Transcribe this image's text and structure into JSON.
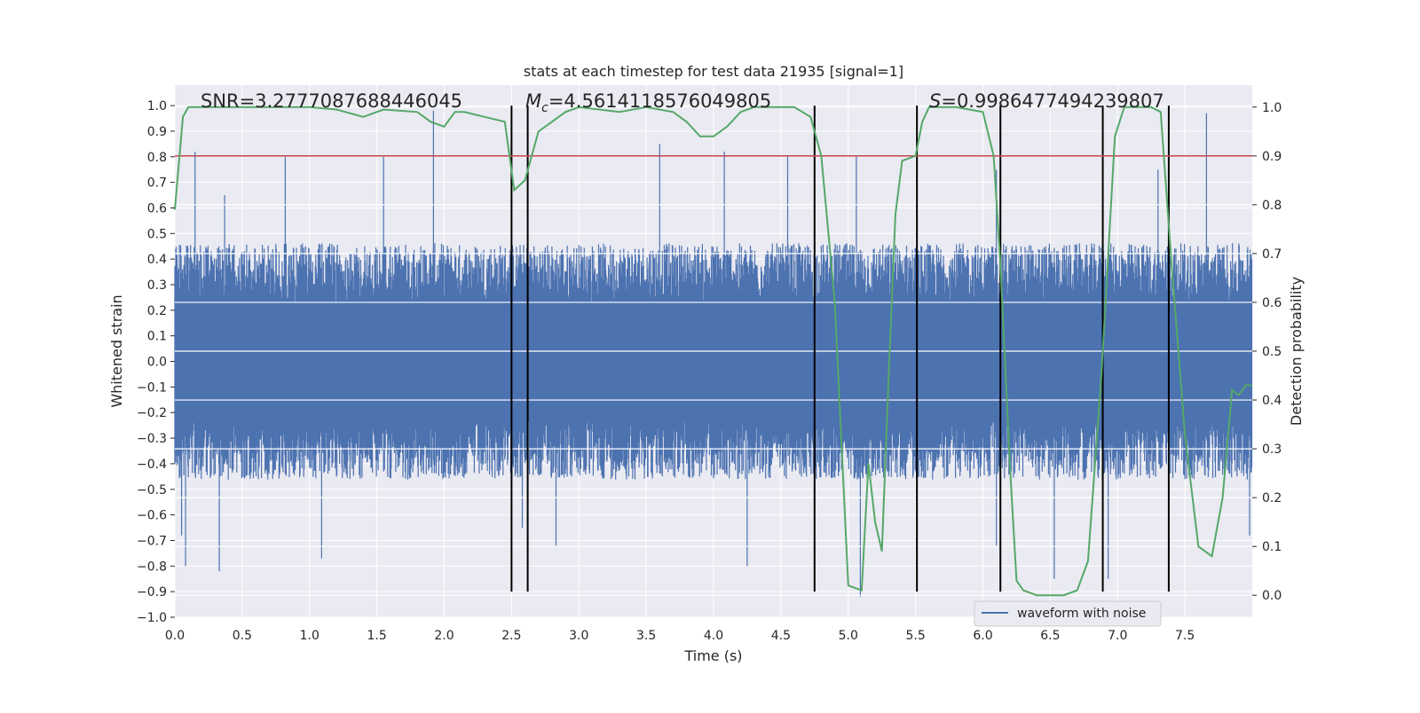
{
  "chart_data": {
    "type": "line",
    "title": "stats at each timestep for test data 21935 [signal=1]",
    "xlabel": "Time (s)",
    "ylabel": "Whitened strain",
    "y2label": "Detection probability",
    "xlim": [
      0,
      8
    ],
    "ylim": [
      -1.0,
      1.08
    ],
    "y2lim": [
      -0.045,
      1.045
    ],
    "xticks": [
      "0.0",
      "0.5",
      "1.0",
      "1.5",
      "2.0",
      "2.5",
      "3.0",
      "3.5",
      "4.0",
      "4.5",
      "5.0",
      "5.5",
      "6.0",
      "6.5",
      "7.0",
      "7.5"
    ],
    "yticks": [
      "1.0",
      "0.9",
      "0.8",
      "0.7",
      "0.6",
      "0.5",
      "0.4",
      "0.3",
      "0.2",
      "0.1",
      "0.0",
      "−0.1",
      "−0.2",
      "−0.3",
      "−0.4",
      "−0.5",
      "−0.6",
      "−0.7",
      "−0.8",
      "−0.9",
      "−1.0"
    ],
    "y2ticks": [
      "1.0",
      "0.9",
      "0.8",
      "0.7",
      "0.6",
      "0.5",
      "0.4",
      "0.3",
      "0.2",
      "0.1",
      "0.0"
    ],
    "grid": true,
    "background": "#eaeaf2",
    "legend": {
      "placement": "lower-right",
      "entries": [
        "waveform with noise"
      ]
    },
    "annotations": {
      "snr": "SNR=3.2777087688446045",
      "mc_symbol": "M",
      "mc_sub": "c",
      "mc_value": "=4.5614118576049805",
      "s_symbol": "S",
      "s_value": "=0.9986477494239807"
    },
    "series": [
      {
        "name": "waveform with noise",
        "color": "#4c72b0",
        "axis": "left",
        "envelope_typical": 0.42,
        "peaks": [
          {
            "x": 0.15,
            "y": 0.82
          },
          {
            "x": 0.37,
            "y": 0.65
          },
          {
            "x": 0.82,
            "y": 0.8
          },
          {
            "x": 1.55,
            "y": 0.8
          },
          {
            "x": 1.92,
            "y": 0.98
          },
          {
            "x": 3.6,
            "y": 0.85
          },
          {
            "x": 4.08,
            "y": 0.82
          },
          {
            "x": 4.55,
            "y": 0.8
          },
          {
            "x": 5.06,
            "y": 0.8
          },
          {
            "x": 6.1,
            "y": 0.75
          },
          {
            "x": 7.3,
            "y": 0.75
          },
          {
            "x": 7.66,
            "y": 0.97
          },
          {
            "x": 0.05,
            "y": -0.68
          },
          {
            "x": 0.08,
            "y": -0.8
          },
          {
            "x": 0.33,
            "y": -0.82
          },
          {
            "x": 1.09,
            "y": -0.77
          },
          {
            "x": 2.58,
            "y": -0.65
          },
          {
            "x": 2.83,
            "y": -0.72
          },
          {
            "x": 4.25,
            "y": -0.8
          },
          {
            "x": 5.09,
            "y": -0.92
          },
          {
            "x": 6.1,
            "y": -0.72
          },
          {
            "x": 6.53,
            "y": -0.85
          },
          {
            "x": 6.93,
            "y": -0.85
          },
          {
            "x": 7.98,
            "y": -0.68
          }
        ]
      },
      {
        "name": "",
        "color": "#55a868",
        "axis": "right",
        "x": [
          0.0,
          0.06,
          0.1,
          0.2,
          0.5,
          1.0,
          1.2,
          1.4,
          1.55,
          1.8,
          1.9,
          2.0,
          2.08,
          2.15,
          2.3,
          2.45,
          2.52,
          2.6,
          2.7,
          2.75,
          2.9,
          3.0,
          3.3,
          3.5,
          3.7,
          3.8,
          3.9,
          4.0,
          4.1,
          4.2,
          4.3,
          4.4,
          4.6,
          4.72,
          4.8,
          4.9,
          5.0,
          5.1,
          5.15,
          5.2,
          5.25,
          5.3,
          5.35,
          5.4,
          5.5,
          5.55,
          5.6,
          5.7,
          5.8,
          6.0,
          6.08,
          6.13,
          6.2,
          6.25,
          6.3,
          6.4,
          6.6,
          6.7,
          6.78,
          6.88,
          6.98,
          7.05,
          7.15,
          7.25,
          7.32,
          7.4,
          7.5,
          7.6,
          7.7,
          7.78,
          7.85,
          7.9,
          7.95,
          8.0
        ],
        "values": [
          0.79,
          0.98,
          1.0,
          1.0,
          1.0,
          1.0,
          0.995,
          0.98,
          0.995,
          0.99,
          0.97,
          0.96,
          0.99,
          0.99,
          0.98,
          0.97,
          0.83,
          0.85,
          0.95,
          0.96,
          0.99,
          1.0,
          0.99,
          1.0,
          0.99,
          0.97,
          0.94,
          0.94,
          0.96,
          0.99,
          1.0,
          1.0,
          1.0,
          0.98,
          0.9,
          0.6,
          0.02,
          0.01,
          0.27,
          0.15,
          0.09,
          0.45,
          0.78,
          0.89,
          0.9,
          0.97,
          1.0,
          1.0,
          1.0,
          0.99,
          0.9,
          0.68,
          0.27,
          0.03,
          0.01,
          0.0,
          0.0,
          0.01,
          0.07,
          0.45,
          0.94,
          1.0,
          1.0,
          1.0,
          0.99,
          0.68,
          0.33,
          0.1,
          0.08,
          0.2,
          0.42,
          0.41,
          0.43,
          0.43
        ]
      }
    ],
    "threshold": {
      "axis": "right",
      "value": 0.9,
      "color": "#c44e52"
    },
    "event_markers": {
      "color": "#000000",
      "x": [
        2.5,
        2.62,
        4.75,
        5.51,
        6.13,
        6.89,
        7.38
      ],
      "y_range": [
        -0.9,
        1.0
      ]
    }
  }
}
